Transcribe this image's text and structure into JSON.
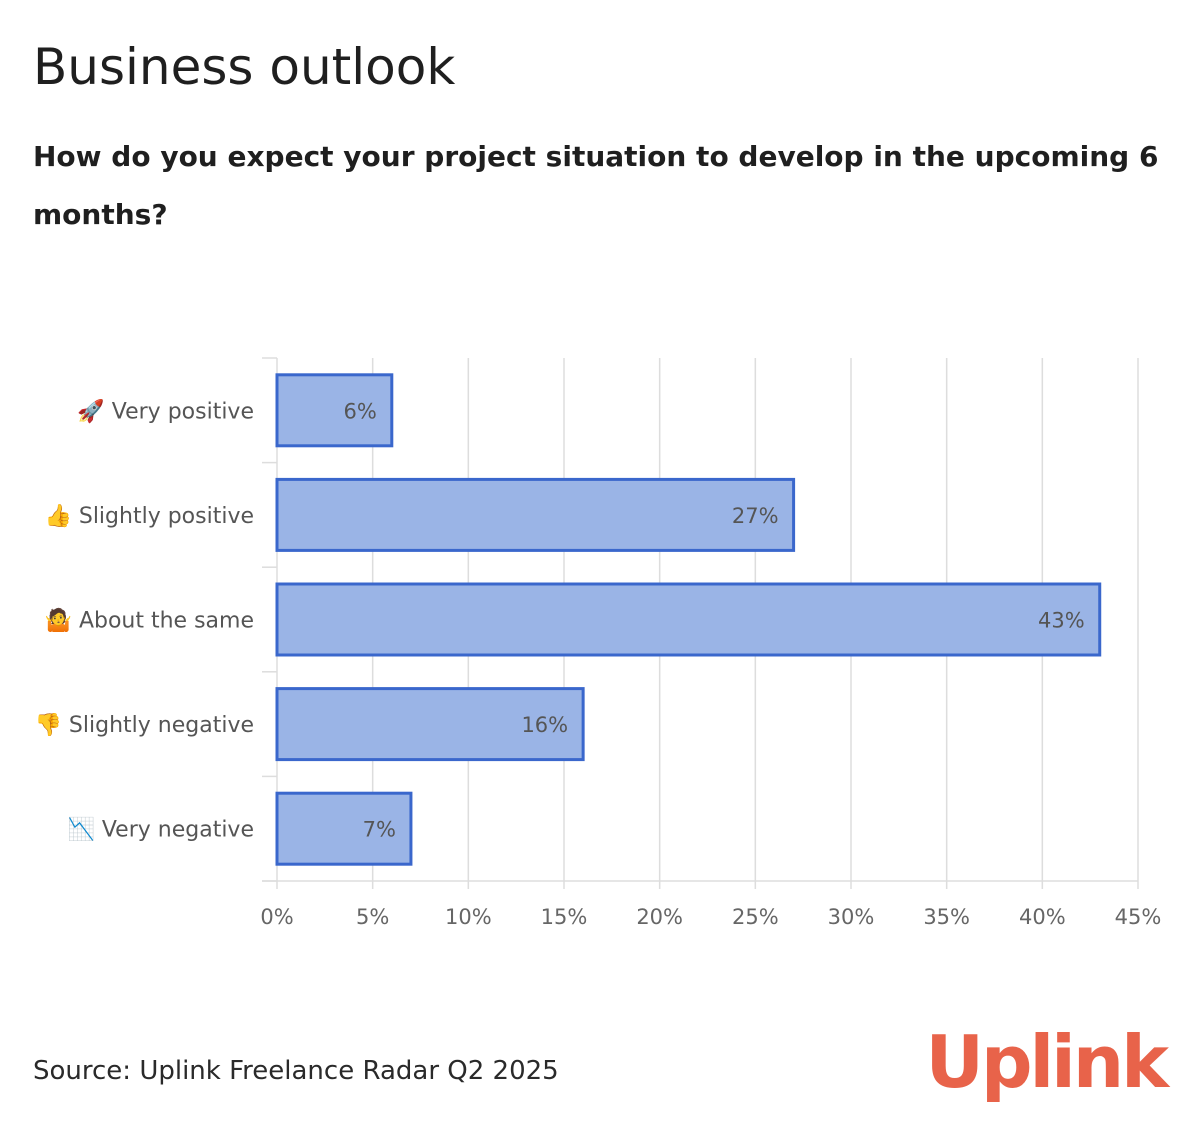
{
  "header": {
    "title": "Business outlook",
    "subtitle": "How do you expect your project situation to develop in the upcoming 6 months?"
  },
  "footer": {
    "source": "Source: Uplink Freelance Radar Q2 2025",
    "logo": "Uplink"
  },
  "colors": {
    "bar_fill": "#98b2e5",
    "bar_stroke": "#3a67cc",
    "grid": "#dddddd",
    "axis_text": "#666666",
    "label_text": "#555555",
    "brand": "#e8634a"
  },
  "chart_data": {
    "type": "bar",
    "orientation": "horizontal",
    "categories": [
      "🚀 Very positive",
      "👍 Slightly positive",
      "🤷 About the same",
      "👎 Slightly negative",
      "📉 Very negative"
    ],
    "values": [
      6,
      27,
      43,
      16,
      7
    ],
    "data_labels": [
      "6%",
      "27%",
      "43%",
      "16%",
      "7%"
    ],
    "xlim": [
      0,
      45
    ],
    "xticks": [
      0,
      5,
      10,
      15,
      20,
      25,
      30,
      35,
      40,
      45
    ],
    "xtick_labels": [
      "0%",
      "5%",
      "10%",
      "15%",
      "20%",
      "25%",
      "30%",
      "35%",
      "40%",
      "45%"
    ],
    "grid": true,
    "legend": false
  }
}
